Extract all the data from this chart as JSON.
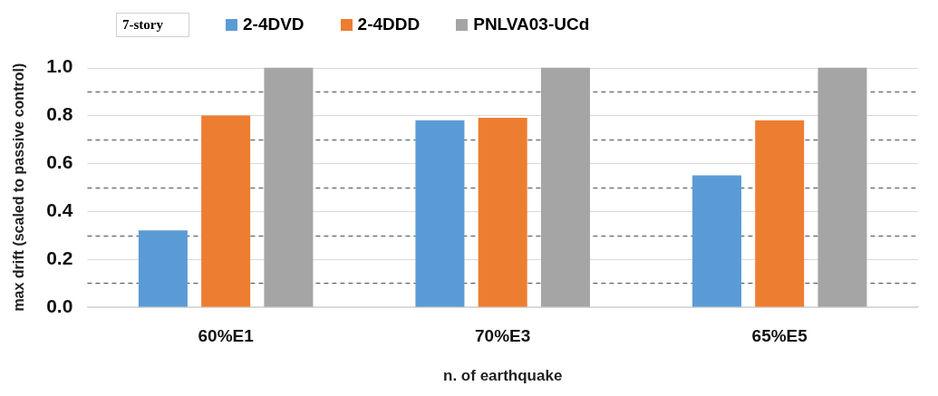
{
  "chart_data": {
    "type": "bar",
    "xlabel": "n. of earthquake",
    "ylabel": "max drift (scaled to passive control)",
    "legend_title": "7-story",
    "categories": [
      "60%E1",
      "70%E3",
      "65%E5"
    ],
    "series": [
      {
        "name": "2-4DVD",
        "color": "#5b9bd5",
        "values": [
          0.32,
          0.78,
          0.55
        ]
      },
      {
        "name": "2-4DDD",
        "color": "#ed7d31",
        "values": [
          0.8,
          0.79,
          0.78
        ]
      },
      {
        "name": "PNLVA03-UCd",
        "color": "#a5a5a5",
        "values": [
          1.0,
          1.0,
          1.0
        ]
      }
    ],
    "ylim": [
      0,
      1
    ],
    "yticks": [
      {
        "value": 0,
        "label": "0.0"
      },
      {
        "value": 0.1,
        "label": null
      },
      {
        "value": 0.2,
        "label": "0.2"
      },
      {
        "value": 0.3,
        "label": null
      },
      {
        "value": 0.4,
        "label": "0.4"
      },
      {
        "value": 0.5,
        "label": null
      },
      {
        "value": 0.6,
        "label": "0.6"
      },
      {
        "value": 0.7,
        "label": null
      },
      {
        "value": 0.8,
        "label": "0.8"
      },
      {
        "value": 0.9,
        "label": null
      },
      {
        "value": 1,
        "label": "1.0"
      }
    ],
    "grid": "y",
    "legend": "top"
  }
}
